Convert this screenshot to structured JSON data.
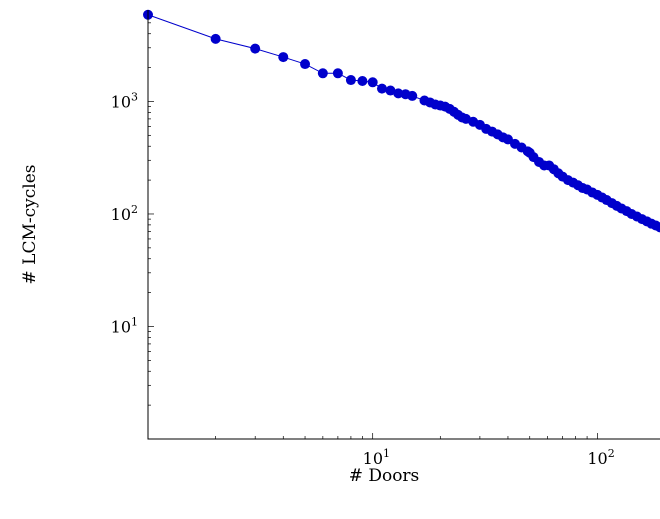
{
  "chart_data": {
    "type": "line",
    "title": "",
    "xlabel": "# Doors",
    "ylabel": "# LCM-cycles",
    "xscale": "log",
    "yscale": "log",
    "xlim": [
      1,
      190
    ],
    "ylim": [
      1,
      6500
    ],
    "grid": false,
    "legend": "none",
    "xticks": [
      {
        "value": 10,
        "base": "10",
        "exp": "1"
      },
      {
        "value": 100,
        "base": "10",
        "exp": "2"
      }
    ],
    "yticks": [
      {
        "value": 10,
        "base": "10",
        "exp": "1"
      },
      {
        "value": 100,
        "base": "10",
        "exp": "2"
      },
      {
        "value": 1000,
        "base": "10",
        "exp": "3"
      }
    ],
    "series": [
      {
        "color": "#0000cc",
        "marker": "circle",
        "points": [
          [
            1,
            5900
          ],
          [
            2,
            3600
          ],
          [
            3,
            2950
          ],
          [
            4,
            2480
          ],
          [
            5,
            2150
          ],
          [
            6,
            1780
          ],
          [
            7,
            1780
          ],
          [
            8,
            1550
          ],
          [
            9,
            1520
          ],
          [
            10,
            1480
          ],
          [
            11,
            1300
          ],
          [
            12,
            1250
          ],
          [
            13,
            1180
          ],
          [
            14,
            1160
          ],
          [
            15,
            1120
          ],
          [
            17,
            1020
          ],
          [
            18,
            980
          ],
          [
            19,
            940
          ],
          [
            20,
            920
          ],
          [
            21,
            900
          ],
          [
            22,
            860
          ],
          [
            23,
            810
          ],
          [
            24,
            760
          ],
          [
            25,
            720
          ],
          [
            26,
            700
          ],
          [
            28,
            660
          ],
          [
            30,
            620
          ],
          [
            32,
            570
          ],
          [
            34,
            540
          ],
          [
            36,
            510
          ],
          [
            38,
            480
          ],
          [
            40,
            460
          ],
          [
            43,
            420
          ],
          [
            46,
            390
          ],
          [
            49,
            360
          ],
          [
            50,
            350
          ],
          [
            52,
            320
          ],
          [
            55,
            290
          ],
          [
            58,
            270
          ],
          [
            61,
            270
          ],
          [
            64,
            250
          ],
          [
            67,
            230
          ],
          [
            70,
            215
          ],
          [
            74,
            200
          ],
          [
            78,
            190
          ],
          [
            82,
            180
          ],
          [
            86,
            170
          ],
          [
            90,
            165
          ],
          [
            95,
            155
          ],
          [
            100,
            148
          ],
          [
            105,
            140
          ],
          [
            110,
            133
          ],
          [
            116,
            125
          ],
          [
            122,
            118
          ],
          [
            128,
            112
          ],
          [
            135,
            106
          ],
          [
            142,
            100
          ],
          [
            150,
            95
          ],
          [
            158,
            90
          ],
          [
            166,
            86
          ],
          [
            174,
            82
          ],
          [
            182,
            79
          ],
          [
            190,
            76
          ]
        ]
      }
    ]
  }
}
